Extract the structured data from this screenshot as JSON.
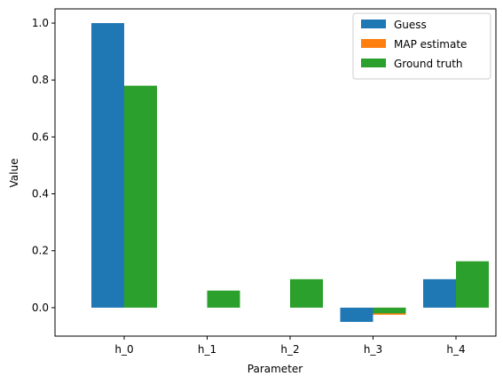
{
  "chart_data": {
    "type": "bar",
    "categories": [
      "h_0",
      "h_1",
      "h_2",
      "h_3",
      "h_4"
    ],
    "series": [
      {
        "name": "Guess",
        "values": [
          1.0,
          0.0,
          0.0,
          -0.05,
          0.1
        ],
        "color": "#1f77b4"
      },
      {
        "name": "MAP estimate",
        "values": [
          0.0,
          0.0,
          0.0,
          -0.025,
          0.0
        ],
        "color": "#ff7f0e"
      },
      {
        "name": "Ground truth",
        "values": [
          0.78,
          0.06,
          0.1,
          -0.02,
          0.163
        ],
        "color": "#2ca02c"
      }
    ],
    "xlabel": "Parameter",
    "ylabel": "Value",
    "ylim": [
      -0.1,
      1.05
    ],
    "yticks": [
      "0.0",
      "0.2",
      "0.4",
      "0.6",
      "0.8",
      "1.0"
    ],
    "grid": false,
    "legend_position": "top-right"
  }
}
